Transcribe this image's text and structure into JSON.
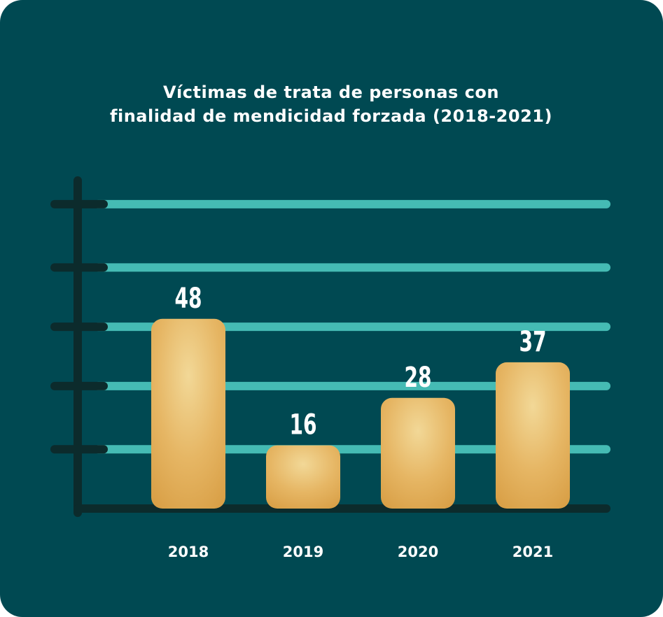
{
  "chart_data": {
    "type": "bar",
    "title": [
      "Víctimas de trata de personas con",
      "finalidad de mendicidad forzada (2018-2021)"
    ],
    "categories": [
      "2018",
      "2019",
      "2020",
      "2021"
    ],
    "values": [
      48,
      16,
      28,
      37
    ],
    "color": "#e0aa52",
    "ylim": [
      0,
      83
    ],
    "yticks": [
      15,
      31,
      46,
      61,
      77
    ],
    "grid": true
  }
}
